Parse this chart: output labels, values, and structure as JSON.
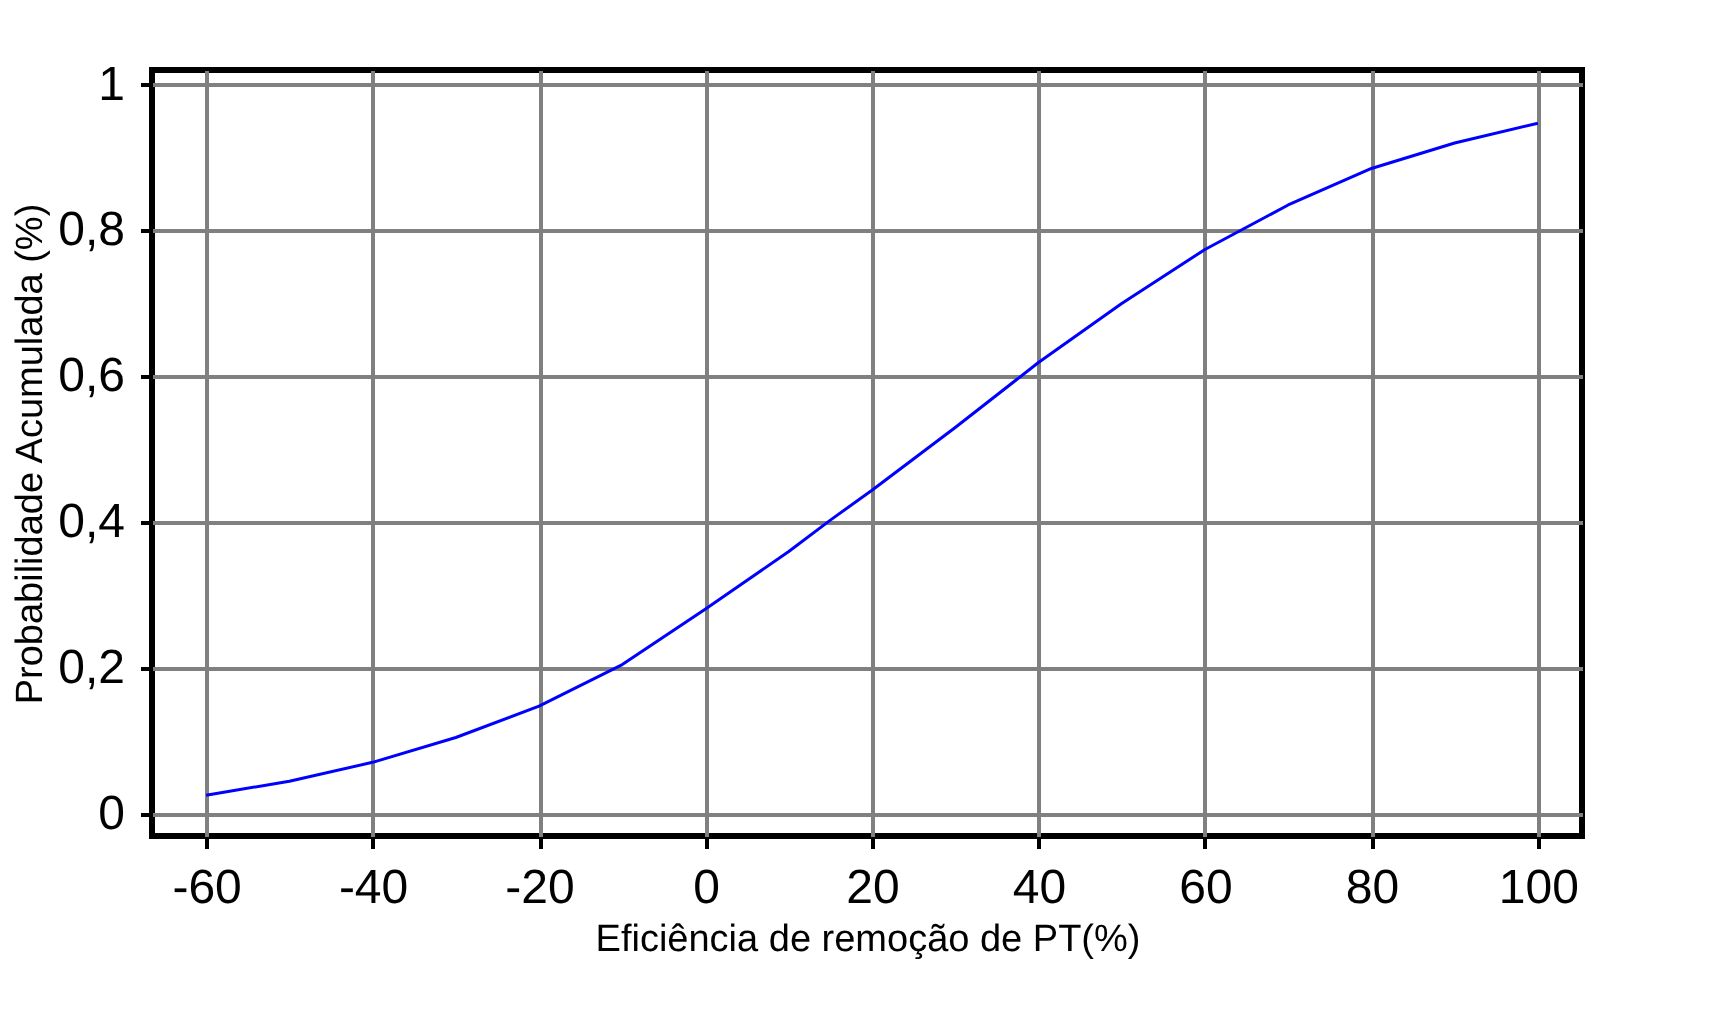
{
  "chart_data": {
    "type": "line",
    "xlabel": "Eficiência de remoção de PT(%)",
    "ylabel": "Probabilidade Acumulada (%)",
    "x": [
      -60,
      -50,
      -40,
      -30,
      -20,
      -10,
      0,
      10,
      15,
      20,
      30,
      40,
      50,
      60,
      70,
      80,
      90,
      100
    ],
    "series": [
      {
        "color": "#0000ff",
        "values": [
          0.026,
          0.045,
          0.071,
          0.105,
          0.148,
          0.205,
          0.281,
          0.36,
          0.403,
          0.444,
          0.53,
          0.619,
          0.7,
          0.774,
          0.835,
          0.885,
          0.92,
          0.947
        ]
      }
    ],
    "xlim": [
      -66.5,
      105.3
    ],
    "ylim": [
      -0.03,
      1.02
    ],
    "xticks": [
      -60,
      -40,
      -20,
      0,
      20,
      40,
      60,
      80,
      100
    ],
    "yticks": [
      0,
      {
        "value": 0.2,
        "label": "0,2"
      },
      {
        "value": 0.4,
        "label": "0,4"
      },
      {
        "value": 0.6,
        "label": "0,6"
      },
      {
        "value": 0.8,
        "label": "0,8"
      },
      1
    ],
    "grid": true,
    "marker": "none",
    "line_style": "solid"
  }
}
